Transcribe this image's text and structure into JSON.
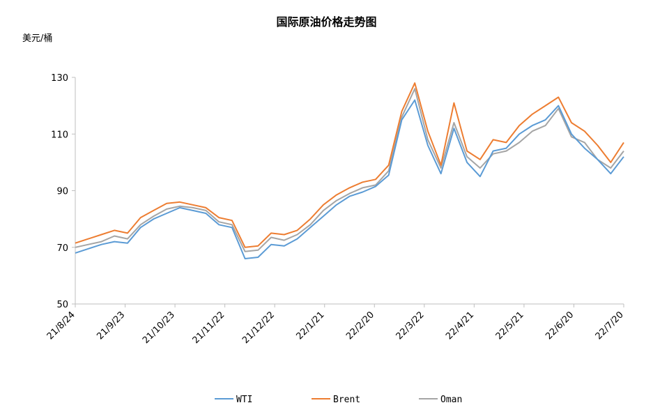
{
  "title": "国际原油价格走势图",
  "y_unit": "美元/桶",
  "colors": {
    "WTI": "#5b9bd5",
    "Brent": "#ed7d31",
    "Oman": "#a5a5a5"
  },
  "chart_data": {
    "type": "line",
    "title": "国际原油价格走势图",
    "ylabel": "美元/桶",
    "xlabel": "",
    "ylim": [
      50,
      130
    ],
    "yticks": [
      50,
      70,
      90,
      110,
      130
    ],
    "grid": false,
    "legend_position": "bottom",
    "x": [
      "21/8/24",
      "21/9/1",
      "21/9/8",
      "21/9/15",
      "21/9/23",
      "21/10/1",
      "21/10/8",
      "21/10/15",
      "21/10/23",
      "21/11/1",
      "21/11/8",
      "21/11/15",
      "21/11/22",
      "21/11/26",
      "21/12/1",
      "21/12/8",
      "21/12/15",
      "21/12/22",
      "22/1/1",
      "22/1/10",
      "22/1/21",
      "22/2/1",
      "22/2/10",
      "22/2/20",
      "22/2/28",
      "22/3/3",
      "22/3/8",
      "22/3/11",
      "22/3/16",
      "22/3/22",
      "22/3/31",
      "22/4/11",
      "22/4/21",
      "22/5/1",
      "22/5/11",
      "22/5/21",
      "22/5/31",
      "22/6/9",
      "22/6/20",
      "22/6/30",
      "22/7/7",
      "22/7/14",
      "22/7/20"
    ],
    "xtick_labels": [
      "21/8/24",
      "21/9/23",
      "21/10/23",
      "21/11/22",
      "21/12/22",
      "22/1/21",
      "22/2/20",
      "22/3/22",
      "22/4/21",
      "22/5/21",
      "22/6/20",
      "22/7/20"
    ],
    "series": [
      {
        "name": "WTI",
        "values": [
          68,
          69.5,
          71,
          72,
          71.5,
          77,
          80,
          82,
          84,
          83,
          82,
          78,
          77,
          66,
          66.5,
          71,
          70.5,
          73,
          77,
          81,
          85,
          88,
          89.5,
          91.5,
          95.5,
          115,
          122,
          106,
          96,
          112,
          100,
          95,
          104,
          105,
          110,
          113,
          115,
          120,
          110,
          105,
          101,
          96,
          102
        ]
      },
      {
        "name": "Brent",
        "values": [
          71.5,
          73,
          74.5,
          76,
          75,
          80.5,
          83,
          85.5,
          86,
          85,
          84,
          80.5,
          79.5,
          70,
          70.5,
          75,
          74.5,
          76,
          80,
          85,
          88.5,
          91,
          93,
          94,
          99,
          118,
          128,
          111,
          99,
          121,
          104,
          101,
          108,
          107,
          113,
          117,
          120,
          123,
          114,
          111,
          106,
          100,
          107
        ]
      },
      {
        "name": "Oman",
        "values": [
          70,
          71,
          72,
          74,
          73,
          78,
          81,
          83.5,
          84.5,
          84,
          83,
          79,
          78,
          68.5,
          69,
          73.5,
          72.5,
          74.5,
          78,
          83,
          86.5,
          89,
          91,
          92,
          97,
          116,
          126,
          108,
          98,
          114,
          102,
          98,
          103,
          104,
          107,
          111,
          113,
          119,
          109,
          107,
          101,
          98,
          104
        ]
      }
    ]
  }
}
